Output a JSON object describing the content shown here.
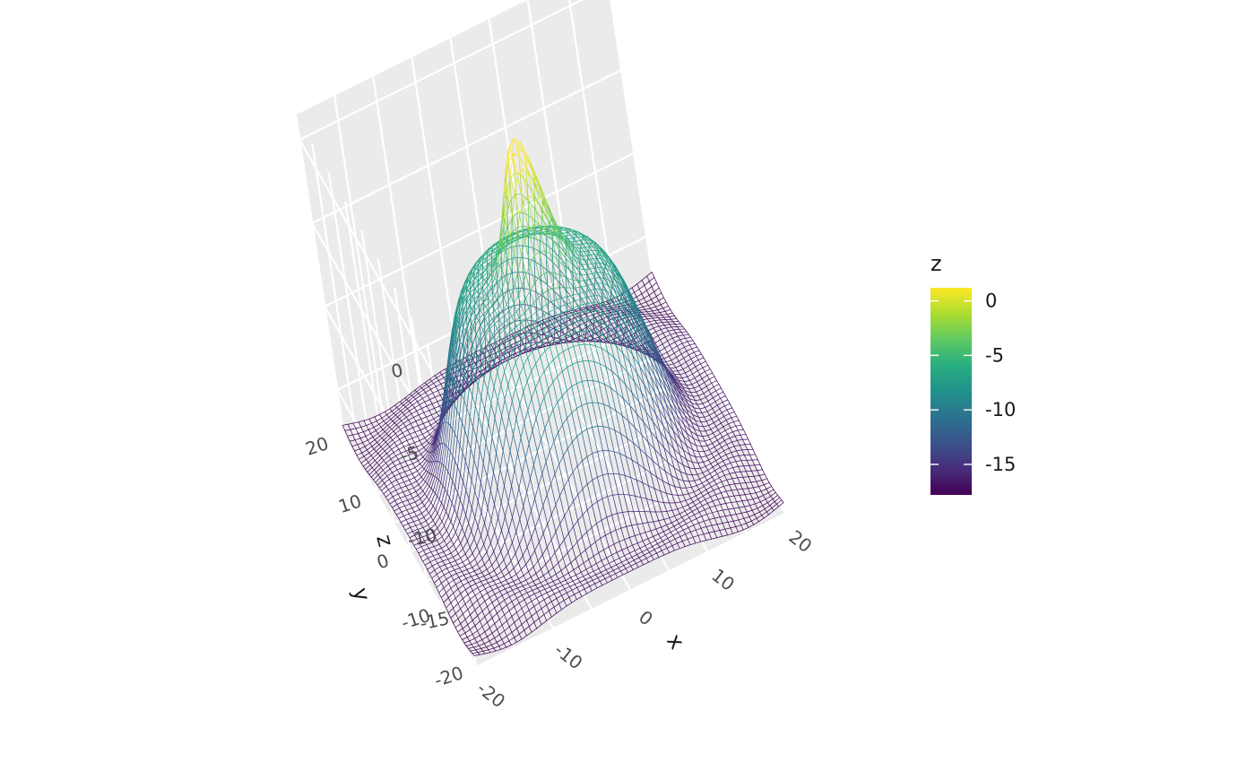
{
  "chart_data": {
    "type": "surface",
    "style": "wireframe",
    "xlabel": "x",
    "ylabel": "y",
    "zlabel": "z",
    "x_ticks": [
      -20,
      -10,
      0,
      10,
      20
    ],
    "y_ticks": [
      -20,
      -10,
      0,
      10,
      20
    ],
    "z_ticks": [
      0,
      -5,
      -10,
      -15
    ],
    "xlim": [
      -20,
      20
    ],
    "ylim": [
      -20,
      20
    ],
    "zlim": [
      -17.8,
      1.5
    ],
    "grid": true,
    "surface": {
      "x_range": [
        -20,
        20
      ],
      "y_range": [
        -20,
        20
      ],
      "grid_lines_per_axis": 60,
      "z_min": -17.8,
      "z_max": 1.2,
      "peak_at": [
        0,
        0
      ]
    },
    "colorbar": {
      "title": "z",
      "colormap": "viridis",
      "ticks": [
        0,
        -5,
        -10,
        -15
      ],
      "range": [
        -17.8,
        1.2
      ],
      "colors": [
        "#440154",
        "#472d7b",
        "#3b528b",
        "#2c728e",
        "#21918c",
        "#28ae80",
        "#5ec962",
        "#addc30",
        "#fde725"
      ]
    },
    "legend_position": "right"
  }
}
